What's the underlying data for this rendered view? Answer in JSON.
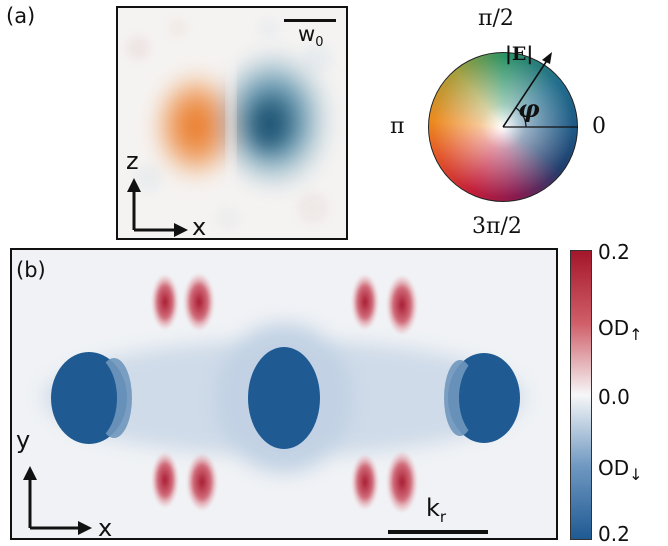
{
  "panel_a": {
    "label": "(a)",
    "scalebar_label": "w",
    "scalebar_label_sub": "0",
    "axis_vertical": "z",
    "axis_horizontal": "x"
  },
  "wheel": {
    "label_top": "π/2",
    "label_left": "π",
    "label_right": "0",
    "label_bottom": "3π/2",
    "vector_label": "|E|",
    "angle_label": "φ"
  },
  "panel_b": {
    "label": "(b)",
    "axis_vertical": "y",
    "axis_horizontal": "x",
    "scalebar_label": "k",
    "scalebar_label_sub": "r"
  },
  "colorbar": {
    "tick_top": "0.2",
    "tick_mid": "0.0",
    "tick_bottom": "0.2",
    "label_up": "OD",
    "label_down": "OD",
    "colors": {
      "red": "#a5162b",
      "white": "#f6f7f8",
      "blue": "#1f5a93"
    }
  },
  "colors": {
    "orange": "#e8751a",
    "teal": "#1d5e7e",
    "dark_blue": "#1f5a93",
    "red": "#b5203a"
  }
}
